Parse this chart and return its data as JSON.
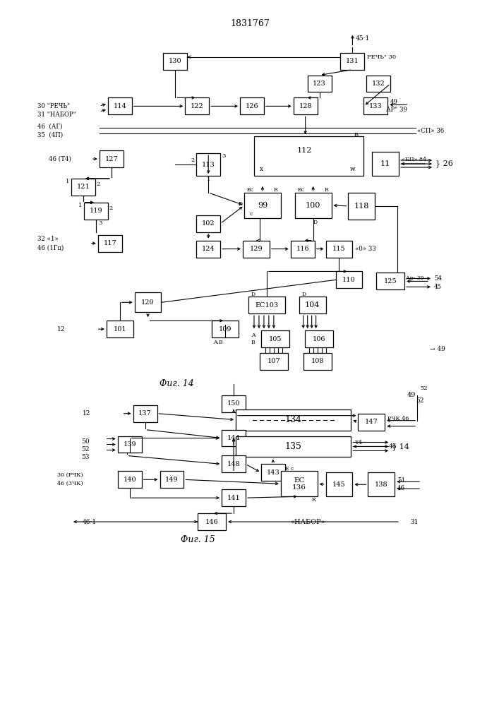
{
  "title": "1831767",
  "fig14_label": "Фиг. 14",
  "fig15_label": "Фиг. 15",
  "background": "#ffffff",
  "box_color": "#ffffff",
  "line_color": "#000000",
  "text_color": "#000000"
}
